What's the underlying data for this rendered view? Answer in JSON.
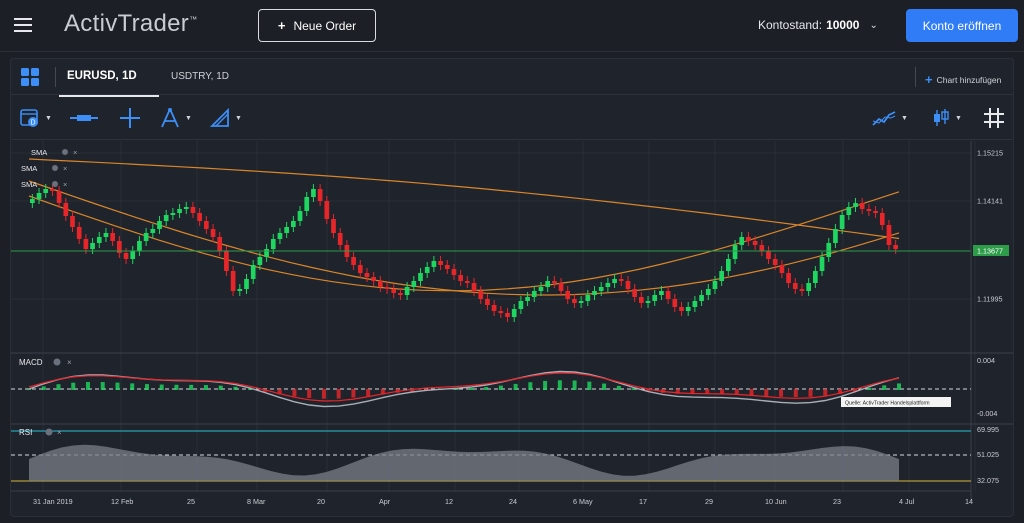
{
  "header": {
    "logo": "ActivTrader",
    "logo_tm": "™",
    "new_order_label": "Neue Order",
    "balance_label": "Kontostand:",
    "balance_value": "10000",
    "open_account_label": "Konto eröffnen"
  },
  "tabs": {
    "active": "EURUSD, 1D",
    "other": "USDTRY, 1D",
    "add_chart": "Chart hinzufügen"
  },
  "chart": {
    "indicators": [
      "SMA",
      "SMA",
      "SMA"
    ],
    "price_axis": [
      "1.15215",
      "1.14141",
      "1.13677",
      "1.11995"
    ],
    "current_price": "1.13677",
    "macd": {
      "label": "MACD",
      "axis": [
        "0.004",
        "-0.004"
      ],
      "tooltip": "Quelle: ActivTrader Handelsplattform"
    },
    "rsi": {
      "label": "RSI",
      "axis": [
        "69.995",
        "51.025",
        "32.075"
      ]
    },
    "x_labels": [
      "31 Jan 2019",
      "12 Feb",
      "25",
      "8 Mar",
      "20",
      "Apr",
      "12",
      "24",
      "6 May",
      "17",
      "29",
      "10 Jun",
      "23",
      "4 Jul",
      "14"
    ],
    "colors": {
      "up": "#1ed760",
      "down": "#e8262a",
      "sma": "#d9862a",
      "accent": "#2f7cf6",
      "price_line": "#2e9d4a"
    }
  }
}
